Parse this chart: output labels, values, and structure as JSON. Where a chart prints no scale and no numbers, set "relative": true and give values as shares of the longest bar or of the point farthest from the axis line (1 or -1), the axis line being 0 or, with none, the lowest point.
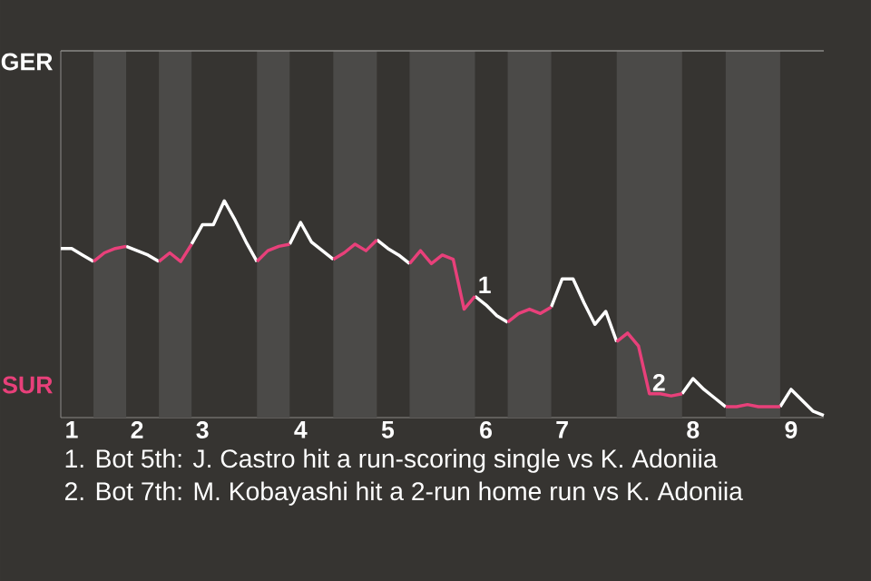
{
  "chart_data": {
    "type": "line",
    "marker": "none",
    "relative": true,
    "categories": [
      null,
      "1",
      null,
      null,
      null,
      null,
      null,
      "2",
      null,
      null,
      null,
      null,
      null,
      "3",
      null,
      null,
      null,
      null,
      null,
      null,
      null,
      null,
      "4",
      null,
      null,
      null,
      null,
      null,
      null,
      null,
      "5",
      null,
      null,
      null,
      null,
      null,
      null,
      null,
      null,
      "6",
      null,
      null,
      null,
      null,
      null,
      null,
      "7",
      null,
      null,
      null,
      null,
      null,
      null,
      null,
      null,
      null,
      null,
      null,
      "8",
      null,
      null,
      null,
      null,
      null,
      null,
      null,
      null,
      "9",
      null,
      null,
      null
    ],
    "series": [
      {
        "color": "#ffffff",
        "values": [
          0.78,
          0.78,
          0.75,
          0.72,
          null,
          null,
          0.79,
          0.77,
          0.75,
          0.72,
          null,
          null,
          0.8,
          0.89,
          0.89,
          1,
          0.91,
          0.81,
          0.72,
          null,
          null,
          0.8,
          0.9,
          0.81,
          0.77,
          0.73,
          null,
          null,
          null,
          0.82,
          0.78,
          0.75,
          0.71,
          null,
          null,
          null,
          null,
          null,
          0.56,
          0.52,
          0.47,
          0.44,
          null,
          null,
          null,
          0.51,
          0.64,
          0.64,
          0.53,
          0.43,
          0.49,
          0.35,
          null,
          null,
          null,
          null,
          null,
          0.11,
          0.18,
          0.13,
          0.09,
          0.05,
          null,
          null,
          null,
          null,
          0.05,
          0.13,
          0.08,
          0.03,
          0.01
        ]
      },
      {
        "color": "#e8407a",
        "values": [
          null,
          null,
          null,
          0.72,
          0.76,
          0.78,
          0.79,
          null,
          null,
          0.72,
          0.76,
          0.72,
          0.8,
          null,
          null,
          null,
          null,
          null,
          0.72,
          0.77,
          0.79,
          0.8,
          null,
          null,
          null,
          0.73,
          0.76,
          0.8,
          0.77,
          0.82,
          null,
          null,
          0.71,
          0.77,
          0.71,
          0.75,
          0.73,
          0.5,
          0.56,
          null,
          null,
          0.44,
          0.48,
          0.5,
          0.48,
          0.51,
          null,
          null,
          null,
          null,
          null,
          0.35,
          0.39,
          0.33,
          0.11,
          0.11,
          0.1,
          0.11,
          null,
          null,
          null,
          0.05,
          0.05,
          0.06,
          0.05,
          0.05,
          0.05,
          null,
          null,
          null,
          null
        ]
      }
    ],
    "annotations": [
      "GER",
      "SUR",
      "1. Bot 5th: J. Castro hit a run-scoring single vs K. Adoniia",
      "2. Bot 7th: M. Kobayashi hit a 2-run home run vs K. Adoniia",
      {
        "text": "1",
        "y": 0.56
      },
      {
        "text": "2",
        "y": 0.11
      }
    ]
  }
}
